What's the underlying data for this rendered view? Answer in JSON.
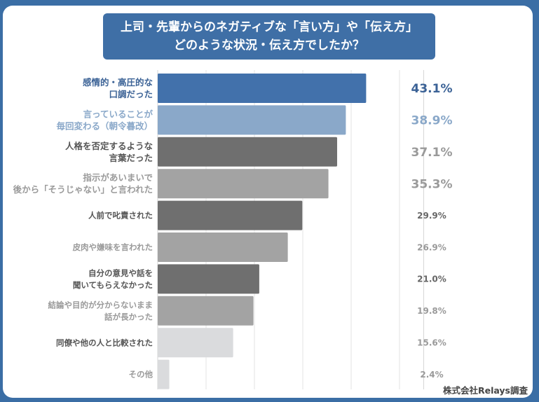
{
  "title": {
    "line1": "上司・先輩からのネガティブな「言い方」や「伝え方」",
    "line2": "どのような状況・伝え方でしたか？"
  },
  "source": "株式会社Relays調査",
  "chart_data": {
    "type": "bar",
    "orientation": "horizontal",
    "unit": "%",
    "xlim": [
      0,
      55
    ],
    "grid": true,
    "categories": [
      [
        "感情的・高圧的な",
        "口調だった"
      ],
      [
        "言っていることが",
        "毎回変わる（朝令暮改）"
      ],
      [
        "人格を否定するような",
        "言葉だった"
      ],
      [
        "指示があいまいで",
        "後から「そうじゃない」と言われた"
      ],
      [
        "人前で叱責された"
      ],
      [
        "皮肉や嫌味を言われた"
      ],
      [
        "自分の意見や話を",
        "聞いてもらえなかった"
      ],
      [
        "結論や目的が分からないまま",
        "話が長かった"
      ],
      [
        "同僚や他の人と比較された"
      ],
      [
        "その他"
      ]
    ],
    "values": [
      43.1,
      38.9,
      37.1,
      35.3,
      29.9,
      26.9,
      21.0,
      19.8,
      15.6,
      2.4
    ],
    "value_labels": [
      "43.1%",
      "38.9%",
      "37.1%",
      "35.3%",
      "29.9%",
      "26.9%",
      "21.0%",
      "19.8%",
      "15.6%",
      "2.4%"
    ],
    "bar_colors": [
      "#4271ab",
      "#8aa8c9",
      "#6f6f6f",
      "#a3a3a3",
      "#6f6f6f",
      "#a3a3a3",
      "#6f6f6f",
      "#a3a3a3",
      "#dadbdd",
      "#dadbdd"
    ],
    "label_colors": [
      "#3b6296",
      "#8aa8c9",
      "#555555",
      "#9a9a9a",
      "#555555",
      "#9a9a9a",
      "#555555",
      "#9a9a9a",
      "#555555",
      "#9a9a9a"
    ],
    "value_colors": [
      "#3b6296",
      "#8aa8c9",
      "#9a9a9a",
      "#9a9a9a",
      "#666666",
      "#9a9a9a",
      "#666666",
      "#9a9a9a",
      "#9a9a9a",
      "#9a9a9a"
    ]
  }
}
